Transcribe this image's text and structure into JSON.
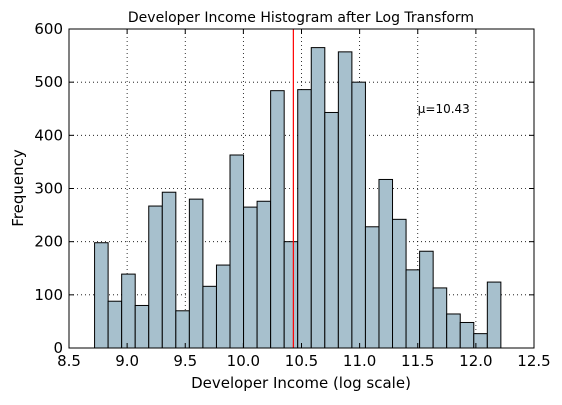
{
  "chart_data": {
    "type": "bar",
    "title": "Developer Income Histogram after Log Transform",
    "xlabel": "Developer Income (log scale)",
    "ylabel": "Frequency",
    "xlim": [
      8.5,
      12.5
    ],
    "ylim": [
      0,
      600
    ],
    "xticks": [
      8.5,
      9.0,
      9.5,
      10.0,
      10.5,
      11.0,
      11.5,
      12.0,
      12.5
    ],
    "xtick_labels": [
      "8.5",
      "9.0",
      "9.5",
      "10.0",
      "10.5",
      "11.0",
      "11.5",
      "12.0",
      "12.5"
    ],
    "yticks": [
      0,
      100,
      200,
      300,
      400,
      500,
      600
    ],
    "ytick_labels": [
      "0",
      "100",
      "200",
      "300",
      "400",
      "500",
      "600"
    ],
    "grid": true,
    "bin_start": 8.72,
    "bin_width": 0.1165,
    "values": [
      198,
      88,
      139,
      80,
      267,
      293,
      70,
      280,
      116,
      156,
      363,
      265,
      276,
      484,
      200,
      486,
      565,
      443,
      557,
      500,
      228,
      317,
      242,
      147,
      182,
      113,
      64,
      48,
      27,
      124
    ],
    "bar_color": "#a7c0cd",
    "edge_color": "#000000",
    "mean_line": {
      "x": 10.43,
      "color": "#ff0000"
    },
    "annotation": {
      "text": "μ=10.43",
      "x": 11.5,
      "y": 450
    }
  }
}
